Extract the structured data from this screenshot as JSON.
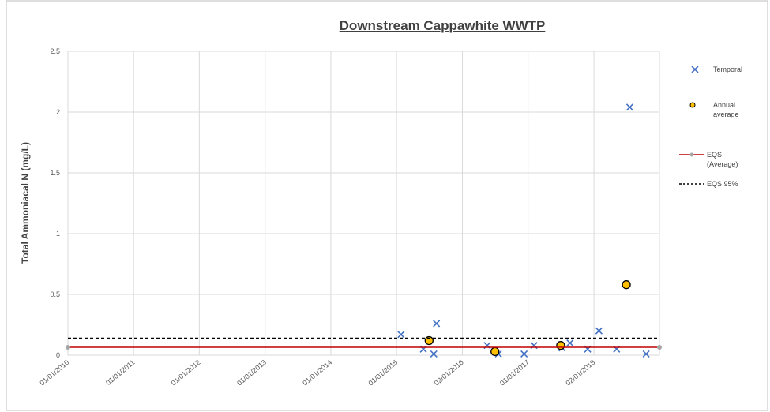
{
  "chart_data": {
    "type": "scatter",
    "title": "Downstream Cappawhite WWTP",
    "y_label": "Total Ammoniacal N (mg/L)",
    "xlim": [
      "2010-01-01",
      "2019-01-01"
    ],
    "xticks": [
      {
        "value": "2010-01-01",
        "label": "01/01/2010"
      },
      {
        "value": "2011-01-01",
        "label": "01/01/2011"
      },
      {
        "value": "2012-01-01",
        "label": "01/01/2012"
      },
      {
        "value": "2013-01-01",
        "label": "01/01/2013"
      },
      {
        "value": "2014-01-01",
        "label": "01/01/2014"
      },
      {
        "value": "2015-01-01",
        "label": "01/01/2015"
      },
      {
        "value": "2016-01-02",
        "label": "02/01/2016"
      },
      {
        "value": "2017-01-01",
        "label": "01/01/2017"
      },
      {
        "value": "2018-01-02",
        "label": "02/01/2018"
      }
    ],
    "ylim": [
      0,
      2.5
    ],
    "yticks": [
      0,
      0.5,
      1,
      1.5,
      2,
      2.5
    ],
    "grid": true,
    "legend": "right",
    "series": [
      {
        "name": "Temporal",
        "color": "#4472c4",
        "marker": "x",
        "x": [
          "2015-01-26",
          "2015-05-30",
          "2015-07-27",
          "2015-08-11",
          "2016-05-19",
          "2016-07-20",
          "2016-12-10",
          "2017-02-03",
          "2017-07-09",
          "2017-08-22",
          "2017-11-28",
          "2018-01-30",
          "2018-05-08",
          "2018-07-20",
          "2018-10-19"
        ],
        "values": [
          0.17,
          0.05,
          0.01,
          0.26,
          0.08,
          0.01,
          0.01,
          0.08,
          0.06,
          0.1,
          0.05,
          0.2,
          0.05,
          2.04,
          0.01
        ]
      },
      {
        "name": "Annual average",
        "color": "#ffc000",
        "marker": "circle",
        "x": [
          "2015-07-01",
          "2016-07-01",
          "2017-07-01",
          "2018-07-01"
        ],
        "values": [
          0.12,
          0.03,
          0.08,
          0.58
        ]
      },
      {
        "name": "EQS (Average)",
        "color": "#c00000",
        "marker": "line",
        "x": [
          "2010-01-01",
          "2019-01-01"
        ],
        "values": [
          0.065,
          0.065
        ]
      },
      {
        "name": "EQS 95%",
        "color": "#000000",
        "marker": "dashed",
        "x": [
          "2010-01-01",
          "2019-01-01"
        ],
        "values": [
          0.14,
          0.14
        ]
      }
    ]
  }
}
